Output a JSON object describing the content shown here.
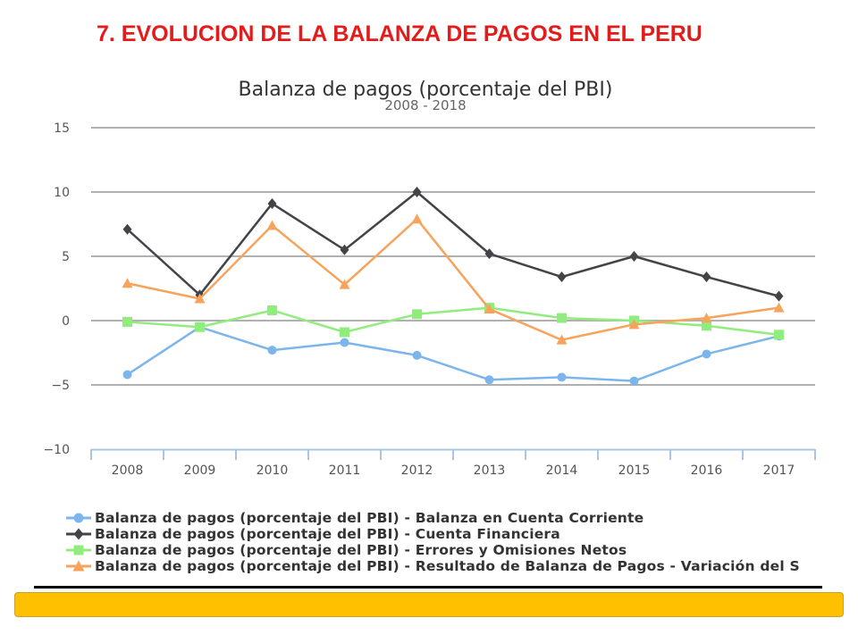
{
  "slide_title": "7. EVOLUCION DE LA BALANZA DE PAGOS EN EL PERU",
  "chart_data": {
    "type": "line",
    "title": "Balanza de pagos (porcentaje del PBI)",
    "subtitle": "2008 - 2018",
    "xlabel": "",
    "ylabel": "",
    "categories": [
      "2008",
      "2009",
      "2010",
      "2011",
      "2012",
      "2013",
      "2014",
      "2015",
      "2016",
      "2017"
    ],
    "ylim": [
      -10,
      15
    ],
    "yticks": [
      -10,
      -5,
      0,
      5,
      10,
      15
    ],
    "ytick_labels": [
      "−10",
      "−5",
      "0",
      "5",
      "10",
      "15"
    ],
    "grid": true,
    "legend_position": "bottom",
    "series": [
      {
        "name": "Balanza de pagos (porcentaje del PBI) - Balanza en Cuenta Corriente",
        "marker": "circle",
        "color": "#7cb5ec",
        "values": [
          -4.2,
          -0.5,
          -2.3,
          -1.7,
          -2.7,
          -4.6,
          -4.4,
          -4.7,
          -2.6,
          -1.2
        ]
      },
      {
        "name": "Balanza de pagos (porcentaje del PBI) - Cuenta Financiera",
        "marker": "diamond",
        "color": "#434348",
        "values": [
          7.1,
          2.0,
          9.1,
          5.5,
          10.0,
          5.2,
          3.4,
          5.0,
          3.4,
          1.9
        ]
      },
      {
        "name": "Balanza de pagos (porcentaje del PBI) - Errores y Omisiones Netos",
        "marker": "square",
        "color": "#90ed7d",
        "values": [
          -0.1,
          -0.5,
          0.8,
          -0.9,
          0.5,
          1.0,
          0.2,
          0.0,
          -0.4,
          -1.1
        ]
      },
      {
        "name": "Balanza de pagos (porcentaje del PBI) - Resultado de Balanza de Pagos - Variación del S",
        "marker": "triangle",
        "color": "#f7a35c",
        "values": [
          2.9,
          1.7,
          7.4,
          2.8,
          7.9,
          0.9,
          -1.5,
          -0.3,
          0.2,
          1.0
        ]
      }
    ]
  },
  "footer_color": "#ffc000"
}
